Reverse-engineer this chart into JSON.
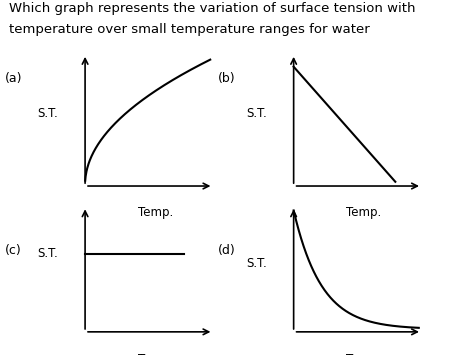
{
  "title_line1": "Which graph represents the variation of surface tension with",
  "title_line2": "temperature over small temperature ranges for water",
  "background_color": "#ffffff",
  "line_color": "#000000",
  "text_color": "#000000",
  "label_a": "(a)",
  "label_b": "(b)",
  "label_c": "(c)",
  "label_d": "(d)",
  "st_label": "S.T.",
  "temp_label": "Temp.",
  "title_fontsize": 9.5,
  "label_fontsize": 9,
  "axis_label_fontsize": 8.5,
  "lw": 1.5,
  "arrow_lw": 1.2
}
